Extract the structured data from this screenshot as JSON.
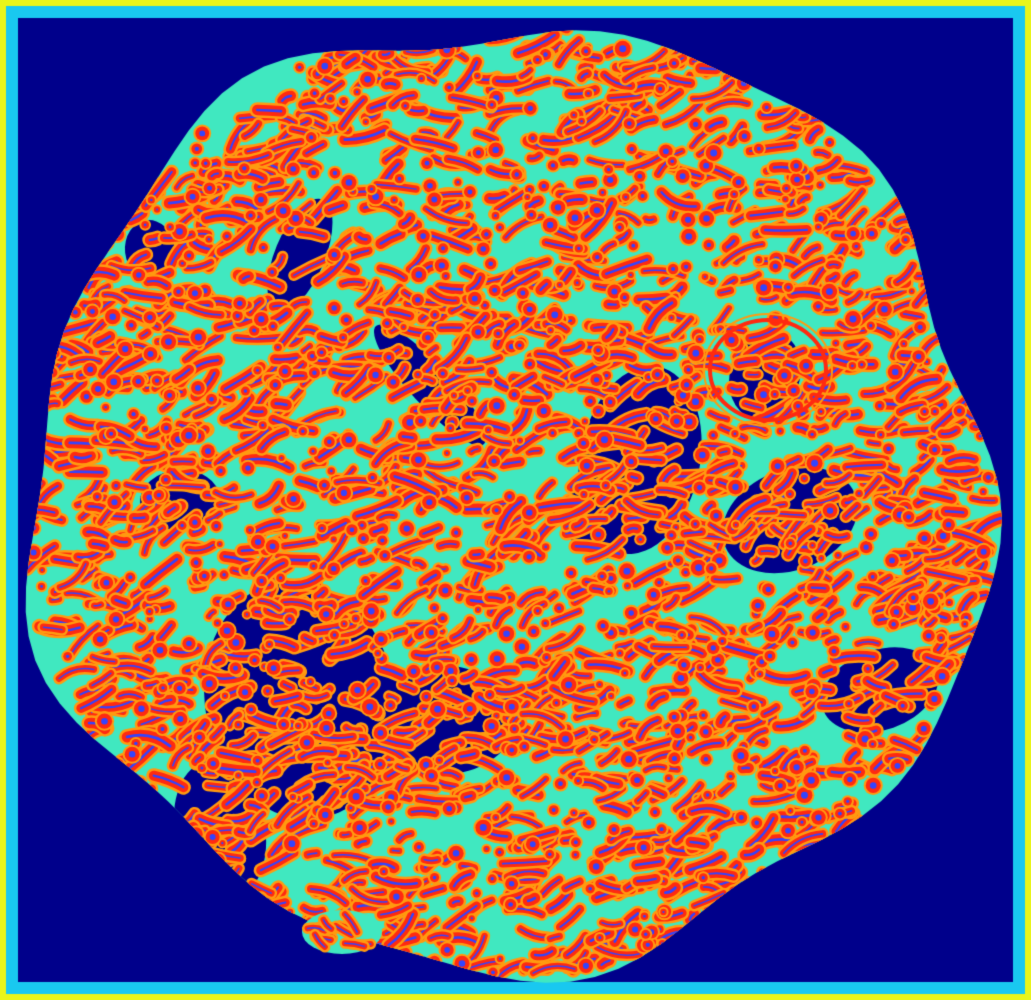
{
  "image": {
    "kind": "false-color tissue microscopy heatmap",
    "colormap": [
      "#000080",
      "#0a2fd6",
      "#00b3ff",
      "#3ee8c3",
      "#f6f21c",
      "#ff9a00",
      "#ff1e00",
      "#a00000"
    ],
    "colors": {
      "background": "#00008b",
      "border_outer": "#e8f51a",
      "border_inner": "#19c8f0",
      "tissue_base": "#40e8c0",
      "ridge_orange": "#ff9b10",
      "ridge_red": "#ff2a10",
      "core_blue": "#3344ff"
    }
  }
}
